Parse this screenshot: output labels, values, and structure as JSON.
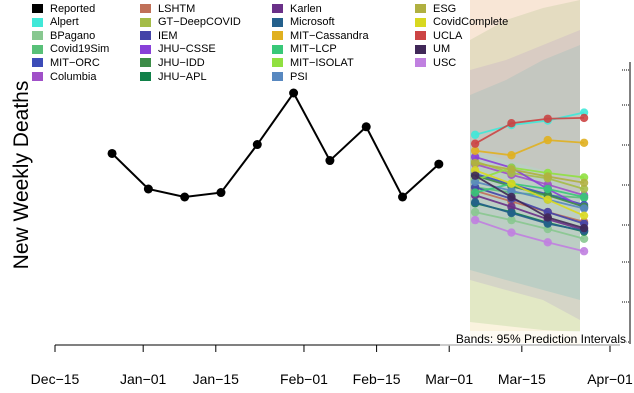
{
  "chart_data": {
    "type": "line",
    "ylabel": "New Weekly Deaths",
    "xlabel": "",
    "x_ticks": [
      "Dec−15",
      "Jan−01",
      "Jan−15",
      "Feb−01",
      "Feb−15",
      "Mar−01",
      "Mar−15",
      "Apr−01"
    ],
    "x_tick_dates": [
      "2020-12-15",
      "2021-01-01",
      "2021-01-15",
      "2021-02-01",
      "2021-02-15",
      "2021-03-01",
      "2021-03-15",
      "2021-04-01"
    ],
    "y_ticks_labeled": false,
    "annotation": "Bands: 95% Prediction Intervals",
    "reported": {
      "name": "Reported",
      "color": "#000000",
      "dates": [
        "2020-12-26",
        "2021-01-02",
        "2021-01-09",
        "2021-01-16",
        "2021-01-23",
        "2021-01-30",
        "2021-02-06",
        "2021-02-13",
        "2021-02-20",
        "2021-02-27"
      ],
      "values": [
        19300,
        15300,
        14400,
        14900,
        20300,
        26100,
        18500,
        22300,
        14400,
        18100
      ]
    },
    "forecast_dates": [
      "2021-03-06",
      "2021-03-13",
      "2021-03-20",
      "2021-03-27"
    ],
    "series": [
      {
        "name": "Alpert",
        "color": "#40e8d8",
        "values": [
          21400,
          22500,
          23000,
          23900
        ]
      },
      {
        "name": "BPagano",
        "color": "#88c890",
        "values": [
          12700,
          11800,
          10800,
          9700
        ]
      },
      {
        "name": "Covid19Sim",
        "color": "#58c078",
        "values": [
          15500,
          14900,
          14600,
          14300
        ]
      },
      {
        "name": "MIT−ORC",
        "color": "#3c4cb8",
        "values": [
          17000,
          15800,
          14700,
          13500
        ]
      },
      {
        "name": "Columbia",
        "color": "#a050c8",
        "values": [
          18100,
          16900,
          15800,
          14600
        ]
      },
      {
        "name": "LSHTM",
        "color": "#c07058",
        "values": [
          15100,
          13900,
          12700,
          11600
        ]
      },
      {
        "name": "GT−DeepCOVID",
        "color": "#a4bc48",
        "values": [
          18400,
          17100,
          16500,
          15300
        ]
      },
      {
        "name": "IEM",
        "color": "#4444a8",
        "values": [
          15500,
          14200,
          12700,
          11400
        ]
      },
      {
        "name": "JHU−CSSE",
        "color": "#8840d8",
        "values": [
          18900,
          17700,
          15300,
          13200
        ]
      },
      {
        "name": "JHU−IDD",
        "color": "#3c8c48",
        "values": [
          16800,
          15600,
          14600,
          13300
        ]
      },
      {
        "name": "JHU−APL",
        "color": "#108048",
        "values": [
          13700,
          12700,
          11500,
          10500
        ]
      },
      {
        "name": "Karlen",
        "color": "#6a3088",
        "values": [
          14600,
          13300,
          11900,
          10700
        ]
      },
      {
        "name": "Microsoft",
        "color": "#24608c",
        "values": [
          13800,
          12600,
          11400,
          10600
        ]
      },
      {
        "name": "MIT−Cassandra",
        "color": "#e0b020",
        "values": [
          19600,
          19100,
          20800,
          20500
        ]
      },
      {
        "name": "MIT−LCP",
        "color": "#38c878",
        "values": [
          14900,
          15900,
          15300,
          14400
        ]
      },
      {
        "name": "MIT−ISOLAT",
        "color": "#90e040",
        "values": [
          16300,
          17700,
          17100,
          16600
        ]
      },
      {
        "name": "PSI",
        "color": "#5888c0",
        "values": [
          16100,
          15100,
          14100,
          13100
        ]
      },
      {
        "name": "ESG",
        "color": "#b0b040",
        "values": [
          18200,
          17500,
          16700,
          16000
        ]
      },
      {
        "name": "CovidComplete",
        "color": "#d8d820",
        "values": [
          17400,
          15900,
          14100,
          12300
        ]
      },
      {
        "name": "UCLA",
        "color": "#cc4444",
        "values": [
          20400,
          22700,
          23200,
          23300
        ]
      },
      {
        "name": "UM",
        "color": "#402858",
        "values": [
          16800,
          14400,
          12100,
          10900
        ]
      },
      {
        "name": "USC",
        "color": "#c080e0",
        "values": [
          11800,
          10400,
          9300,
          8300
        ]
      }
    ]
  }
}
